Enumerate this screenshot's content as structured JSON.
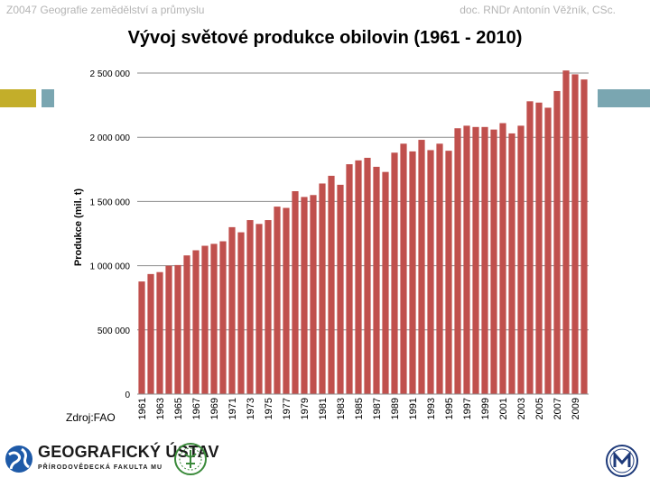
{
  "header": {
    "left_text": "Z0047 Geografie zemědělství a průmyslu",
    "right_text": "doc. RNDr Antonín Věžník, CSc."
  },
  "source_label": "Zdroj:FAO",
  "logos": {
    "geo_title": "GEOGRAFICKÝ ÚSTAV",
    "geo_subtitle": "PŘÍRODOVĚDECKÁ FAKULTA MU"
  },
  "colors": {
    "bar": "#c0504d",
    "gridline": "#8c8c8c",
    "accent_olive": "#c3ae2a",
    "accent_teal": "#7aa6b1",
    "logo_blue": "#1e5aa8",
    "logo_green": "#3a8a3a"
  },
  "chart_data": {
    "type": "bar",
    "title": "Vývoj světové produkce obilovin (1961 - 2010)",
    "ylabel": "Produkce (mil. t)",
    "xlabel": "",
    "ylim": [
      0,
      2500000
    ],
    "y_ticks": [
      0,
      500000,
      1000000,
      1500000,
      2000000,
      2500000
    ],
    "y_tick_labels": [
      "0",
      "500 000",
      "1 000 000",
      "1 500 000",
      "2 000 000",
      "2 500 000"
    ],
    "grid": true,
    "legend": "none",
    "categories": [
      "1961",
      "1962",
      "1963",
      "1964",
      "1965",
      "1966",
      "1967",
      "1968",
      "1969",
      "1970",
      "1971",
      "1972",
      "1973",
      "1974",
      "1975",
      "1976",
      "1977",
      "1978",
      "1979",
      "1980",
      "1981",
      "1982",
      "1983",
      "1984",
      "1985",
      "1986",
      "1987",
      "1988",
      "1989",
      "1990",
      "1991",
      "1992",
      "1993",
      "1994",
      "1995",
      "1996",
      "1997",
      "1998",
      "1999",
      "2000",
      "2001",
      "2002",
      "2003",
      "2004",
      "2005",
      "2006",
      "2007",
      "2008",
      "2009",
      "2010"
    ],
    "x_tick_labels": [
      "1961",
      "1963",
      "1965",
      "1967",
      "1969",
      "1971",
      "1973",
      "1975",
      "1977",
      "1979",
      "1981",
      "1983",
      "1985",
      "1987",
      "1989",
      "1991",
      "1993",
      "1995",
      "1997",
      "1999",
      "2001",
      "2003",
      "2005",
      "2007",
      "2009"
    ],
    "values": [
      877000,
      935000,
      950000,
      1000000,
      1005000,
      1080000,
      1120000,
      1155000,
      1170000,
      1190000,
      1300000,
      1260000,
      1355000,
      1325000,
      1355000,
      1460000,
      1450000,
      1580000,
      1535000,
      1550000,
      1640000,
      1700000,
      1630000,
      1790000,
      1820000,
      1840000,
      1770000,
      1730000,
      1880000,
      1950000,
      1890000,
      1980000,
      1900000,
      1950000,
      1895000,
      2070000,
      2090000,
      2080000,
      2080000,
      2060000,
      2110000,
      2030000,
      2090000,
      2280000,
      2270000,
      2230000,
      2360000,
      2520000,
      2490000,
      2450000
    ]
  }
}
